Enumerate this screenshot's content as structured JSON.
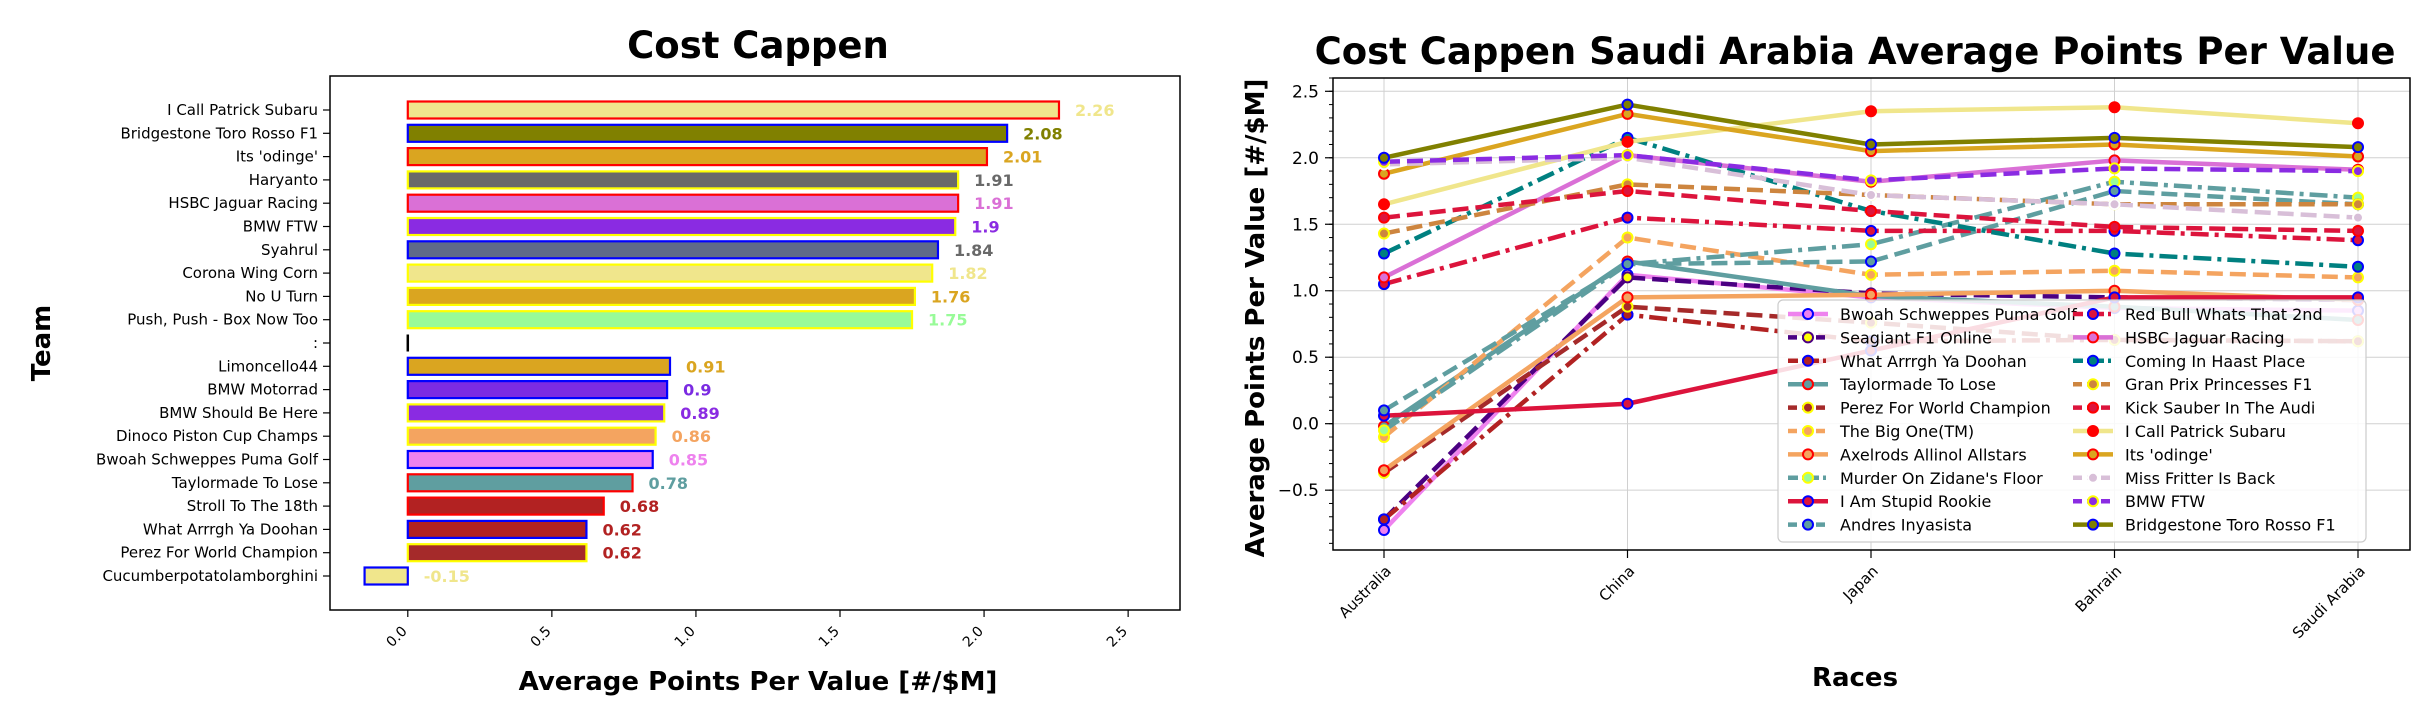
{
  "chart_data": [
    {
      "type": "bar",
      "orientation": "horizontal",
      "title": "Cost Cappen",
      "xlabel": "Average Points Per Value [#/$M]",
      "ylabel": "Team",
      "xlim": [
        -0.27,
        2.68
      ],
      "xticks": [
        "0.0",
        "0.5",
        "1.0",
        "1.5",
        "2.0",
        "2.5"
      ],
      "xtick_values": [
        0,
        0.5,
        1.0,
        1.5,
        2.0,
        2.5
      ],
      "grid": false,
      "categories": [
        "I Call Patrick Subaru",
        "Bridgestone Toro Rosso F1",
        "Its 'odinge'",
        "Haryanto",
        "HSBC Jaguar Racing",
        "BMW FTW",
        "Syahrul",
        "Corona Wing Corn",
        "No U Turn",
        "Push, Push - Box Now Too",
        ":",
        "Limoncello44",
        "BMW Motorrad",
        "BMW Should Be Here",
        "Dinoco Piston Cup Champs",
        "Bwoah Schweppes Puma Golf",
        "Taylormade To Lose",
        "Stroll To The 18th",
        "What Arrrgh Ya Doohan",
        "Perez For World Champion",
        "Cucumberpotatolamborghini"
      ],
      "values": [
        2.26,
        2.08,
        2.01,
        1.91,
        1.91,
        1.9,
        1.84,
        1.82,
        1.76,
        1.75,
        0.0,
        0.91,
        0.9,
        0.89,
        0.86,
        0.85,
        0.78,
        0.68,
        0.62,
        0.62,
        -0.15
      ],
      "labels": [
        "2.26",
        "2.08",
        "2.01",
        "1.91",
        "1.91",
        "1.9",
        "1.84",
        "1.82",
        "1.76",
        "1.75",
        "",
        "0.91",
        "0.9",
        "0.89",
        "0.86",
        "0.85",
        "0.78",
        "0.68",
        "0.62",
        "0.62",
        "-0.15"
      ],
      "fill_colors": [
        "#f0e68c",
        "#808000",
        "#daa520",
        "#696969",
        "#da70d6",
        "#8a2be2",
        "#5f6a8a",
        "#f0e68c",
        "#daa520",
        "#98fb98",
        "#000000",
        "#daa520",
        "#7b2be2",
        "#8a2be2",
        "#f4a460",
        "#ee82ee",
        "#5f9ea0",
        "#b22222",
        "#b22222",
        "#a52a2a",
        "#f0e68c"
      ],
      "edge_colors": [
        "#ff0000",
        "#0000ff",
        "#ff0000",
        "#ffff00",
        "#ff0000",
        "#ffff00",
        "#0000ff",
        "#ffff00",
        "#ffff00",
        "#ffff00",
        "#000000",
        "#0000ff",
        "#0000ff",
        "#ffff00",
        "#ffff00",
        "#0000ff",
        "#ff0000",
        "#ff0000",
        "#0000ff",
        "#ffff00",
        "#0000ff"
      ],
      "label_colors": [
        "#f0e68c",
        "#808000",
        "#daa520",
        "#696969",
        "#da70d6",
        "#8a2be2",
        "#696969",
        "#f0e68c",
        "#daa520",
        "#98fb98",
        "#000000",
        "#daa520",
        "#7b2be2",
        "#8a2be2",
        "#f4a460",
        "#ee82ee",
        "#5f9ea0",
        "#b22222",
        "#b22222",
        "#b22222",
        "#f0e68c"
      ]
    },
    {
      "type": "line",
      "title": "Cost Cappen Saudi Arabia Average Points Per Value",
      "xlabel": "Races",
      "ylabel": "Average Points Per Value [#/$M]",
      "categories": [
        "Australia",
        "China",
        "Japan",
        "Bahrain",
        "Saudi Arabia"
      ],
      "ylim": [
        -0.95,
        2.6
      ],
      "yticks": [
        "−0.5",
        "0.0",
        "0.5",
        "1.0",
        "1.5",
        "2.0",
        "2.5"
      ],
      "ytick_values": [
        -0.5,
        0,
        0.5,
        1.0,
        1.5,
        2.0,
        2.5
      ],
      "grid": true,
      "legend_position": "lower-right",
      "series": [
        {
          "name": "Bwoah Schweppes Puma Golf",
          "values": [
            -0.8,
            1.12,
            0.95,
            0.87,
            0.85
          ],
          "color": "#ee82ee",
          "dash": "solid",
          "marker_edge": "#0000ff",
          "marker_face": "#ee82ee"
        },
        {
          "name": "Seagiant F1 Online",
          "values": [
            -0.72,
            1.1,
            0.98,
            0.95,
            0.93
          ],
          "color": "#4b0082",
          "dash": "dashed",
          "marker_edge": "#4b0082",
          "marker_face": "#ffff00"
        },
        {
          "name": "What Arrrgh Ya Doohan",
          "values": [
            -0.72,
            0.82,
            0.62,
            0.63,
            0.62
          ],
          "color": "#b22222",
          "dash": "dashdot",
          "marker_edge": "#0000ff",
          "marker_face": "#b22222"
        },
        {
          "name": "Taylormade To Lose",
          "values": [
            -0.02,
            1.22,
            0.96,
            0.88,
            0.78
          ],
          "color": "#5f9ea0",
          "dash": "solid",
          "marker_edge": "#ff0000",
          "marker_face": "#5f9ea0"
        },
        {
          "name": "Perez For World Champion",
          "values": [
            -0.37,
            0.88,
            0.76,
            0.63,
            0.62
          ],
          "color": "#a52a2a",
          "dash": "dashed",
          "marker_edge": "#ffff00",
          "marker_face": "#a52a2a"
        },
        {
          "name": "The Big One(TM)",
          "values": [
            -0.1,
            1.4,
            1.12,
            1.15,
            1.1
          ],
          "color": "#f4a460",
          "dash": "dashed",
          "marker_edge": "#ffff00",
          "marker_face": "#f4a460"
        },
        {
          "name": "Axelrods Allinol Allstars",
          "values": [
            -0.35,
            0.95,
            0.97,
            1.0,
            0.93
          ],
          "color": "#f4a460",
          "dash": "solid",
          "marker_edge": "#ff0000",
          "marker_face": "#f4a460"
        },
        {
          "name": "Murder On Zidane's Floor",
          "values": [
            -0.05,
            1.2,
            1.35,
            1.82,
            1.7
          ],
          "color": "#5f9ea0",
          "dash": "dashdot",
          "marker_edge": "#ffff00",
          "marker_face": "#98fb98"
        },
        {
          "name": "I Am Stupid Rookie",
          "values": [
            0.06,
            0.15,
            0.55,
            0.95,
            0.95
          ],
          "color": "#dc143c",
          "dash": "solid",
          "marker_edge": "#0000ff",
          "marker_face": "#dc143c"
        },
        {
          "name": "Andres Inyasista",
          "values": [
            0.1,
            1.2,
            1.22,
            1.75,
            1.65
          ],
          "color": "#5f9ea0",
          "dash": "dashed",
          "marker_edge": "#0000ff",
          "marker_face": "#5f9ea0"
        },
        {
          "name": "Red Bull Whats That 2nd",
          "values": [
            1.05,
            1.55,
            1.45,
            1.45,
            1.38
          ],
          "color": "#dc143c",
          "dash": "dashdot",
          "marker_edge": "#0000ff",
          "marker_face": "#dc143c"
        },
        {
          "name": "HSBC Jaguar Racing",
          "values": [
            1.1,
            2.02,
            1.82,
            1.98,
            1.91
          ],
          "color": "#da70d6",
          "dash": "solid",
          "marker_edge": "#ff0000",
          "marker_face": "#da70d6"
        },
        {
          "name": "Coming In Haast Place",
          "values": [
            1.28,
            2.15,
            1.6,
            1.28,
            1.18
          ],
          "color": "#008080",
          "dash": "dashdot",
          "marker_edge": "#0000ff",
          "marker_face": "#008080"
        },
        {
          "name": "Gran Prix Princesses F1",
          "values": [
            1.43,
            1.8,
            1.72,
            1.65,
            1.65
          ],
          "color": "#cd853f",
          "dash": "dashed",
          "marker_edge": "#ffff00",
          "marker_face": "#cd853f"
        },
        {
          "name": "Kick Sauber In The Audi",
          "values": [
            1.55,
            1.75,
            1.6,
            1.48,
            1.45
          ],
          "color": "#dc143c",
          "dash": "dashed",
          "marker_edge": "#ff0000",
          "marker_face": "#dc143c"
        },
        {
          "name": "I Call Patrick Subaru",
          "values": [
            1.65,
            2.12,
            2.35,
            2.38,
            2.26
          ],
          "color": "#f0e68c",
          "dash": "solid",
          "marker_edge": "#ff0000",
          "marker_face": "#ff0000"
        },
        {
          "name": "Its 'odinge'",
          "values": [
            1.88,
            2.33,
            2.05,
            2.1,
            2.01
          ],
          "color": "#daa520",
          "dash": "solid",
          "marker_edge": "#ff0000",
          "marker_face": "#daa520"
        },
        {
          "name": "Miss Fritter Is Back",
          "values": [
            1.95,
            2.0,
            1.72,
            1.65,
            1.55
          ],
          "color": "#d8bfd8",
          "dash": "dashed",
          "marker_edge": "#ffffff",
          "marker_face": "#d8bfd8"
        },
        {
          "name": "BMW FTW",
          "values": [
            1.97,
            2.02,
            1.83,
            1.92,
            1.9
          ],
          "color": "#8a2be2",
          "dash": "dashed",
          "marker_edge": "#ffff00",
          "marker_face": "#8a2be2"
        },
        {
          "name": "Bridgestone Toro Rosso F1",
          "values": [
            2.0,
            2.4,
            2.1,
            2.15,
            2.08
          ],
          "color": "#808000",
          "dash": "solid",
          "marker_edge": "#0000ff",
          "marker_face": "#808000"
        }
      ]
    }
  ]
}
